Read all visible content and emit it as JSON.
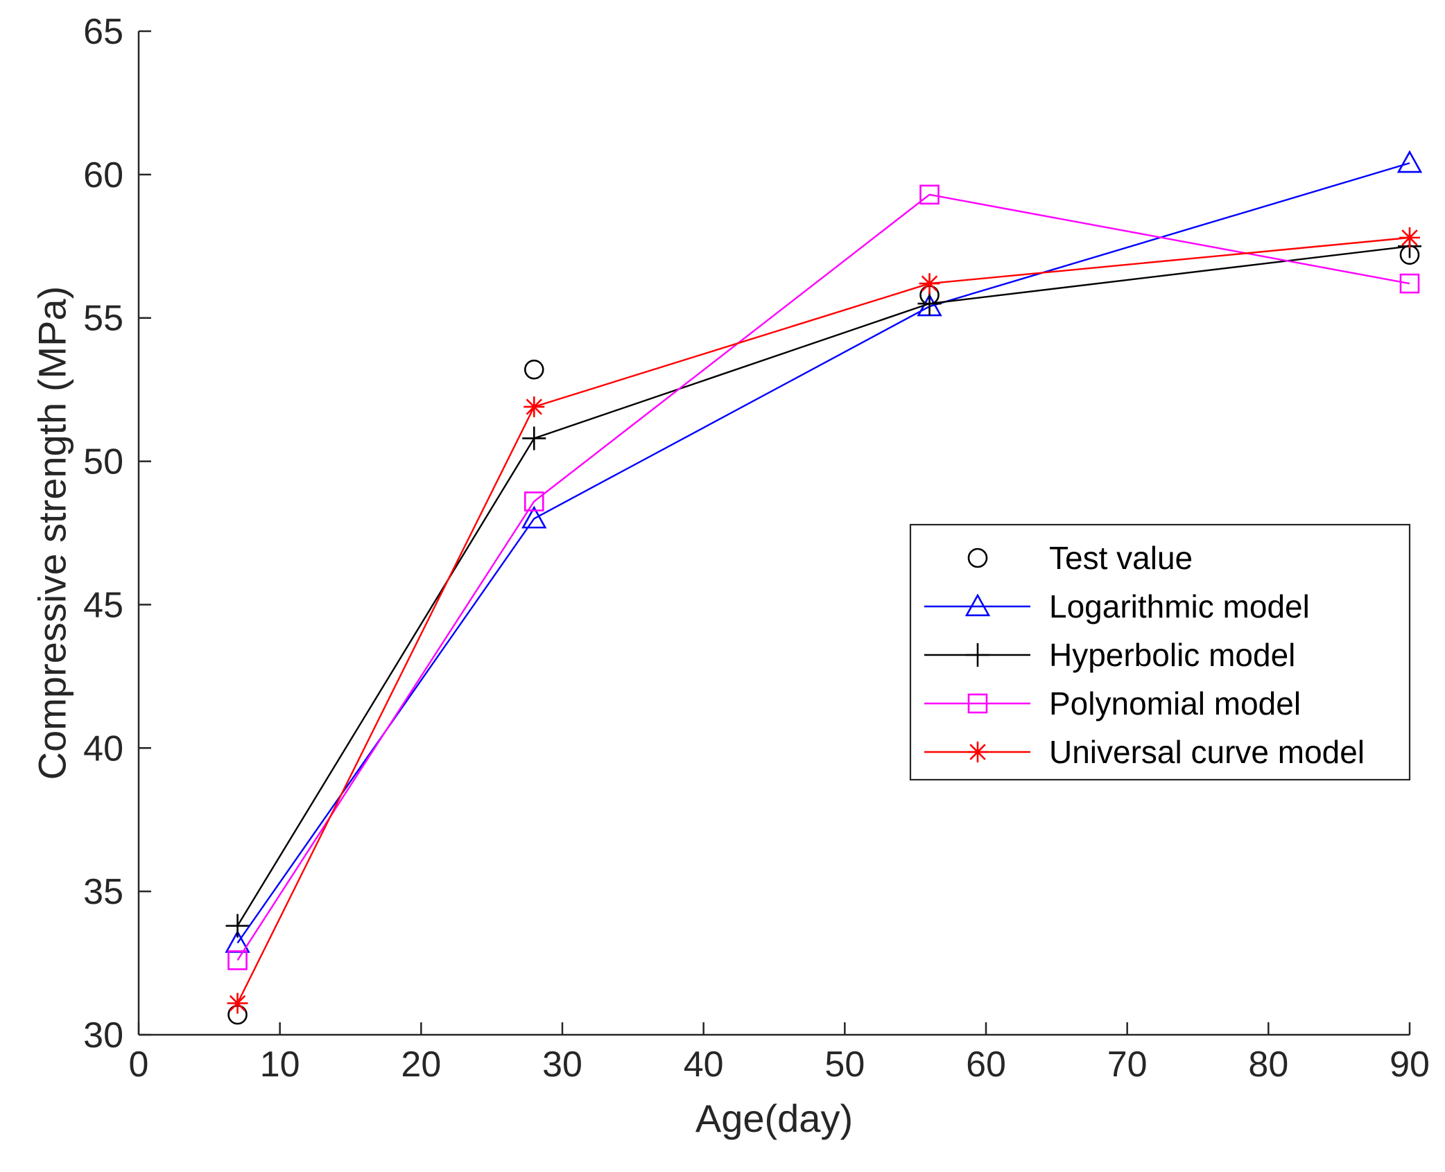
{
  "chart_data": {
    "type": "line",
    "title": "",
    "xlabel": "Age(day)",
    "ylabel": "Compressive strength (MPa)",
    "xlim": [
      0,
      90
    ],
    "ylim": [
      30,
      65
    ],
    "xticks": [
      0,
      10,
      20,
      30,
      40,
      50,
      60,
      70,
      80,
      90
    ],
    "yticks": [
      30,
      35,
      40,
      45,
      50,
      55,
      60,
      65
    ],
    "grid": false,
    "legend_position": "center-right",
    "x": [
      7,
      28,
      56,
      90
    ],
    "series": [
      {
        "name": "Test value",
        "key": "test",
        "values": [
          30.7,
          53.2,
          55.8,
          57.2
        ],
        "color": "#000000",
        "marker": "circle",
        "line": false
      },
      {
        "name": "Logarithmic model",
        "key": "log",
        "values": [
          33.2,
          48.0,
          55.4,
          60.4
        ],
        "color": "#0000ff",
        "marker": "triangle",
        "line": true
      },
      {
        "name": "Hyperbolic model",
        "key": "hyp",
        "values": [
          33.8,
          50.8,
          55.5,
          57.5
        ],
        "color": "#000000",
        "marker": "plus",
        "line": true
      },
      {
        "name": "Polynomial model",
        "key": "poly",
        "values": [
          32.6,
          48.6,
          59.3,
          56.2
        ],
        "color": "#ff00ff",
        "marker": "square",
        "line": true
      },
      {
        "name": "Universal curve model",
        "key": "univ",
        "values": [
          31.1,
          51.9,
          56.2,
          57.8
        ],
        "color": "#ff0000",
        "marker": "asterisk",
        "line": true
      }
    ]
  }
}
